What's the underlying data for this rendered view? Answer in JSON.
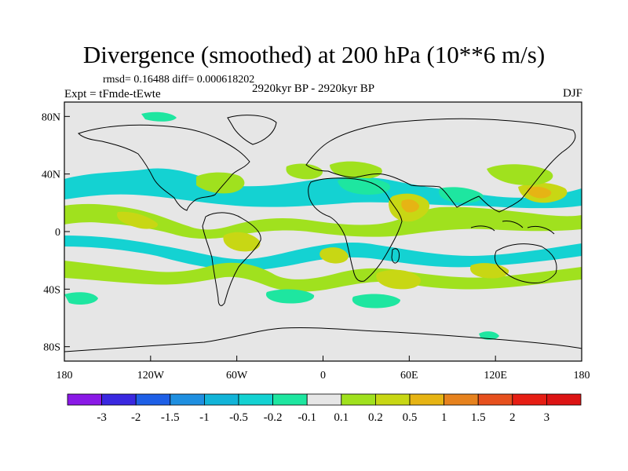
{
  "title": "Divergence (smoothed) at 200 hPa (10**6 m/s)",
  "stats": "rmsd= 0.16488 diff= 0.000618202",
  "experiment": "Expt = tFmde-tEwte",
  "period": "2920kyr BP - 2920kyr BP",
  "season": "DJF",
  "map": {
    "lat_ticks": [
      {
        "label": "80N",
        "lat": 80
      },
      {
        "label": "40N",
        "lat": 40
      },
      {
        "label": "0",
        "lat": 0
      },
      {
        "label": "40S",
        "lat": -40
      },
      {
        "label": "80S",
        "lat": -80
      }
    ],
    "lon_ticks": [
      {
        "label": "180",
        "lon": -180
      },
      {
        "label": "120W",
        "lon": -120
      },
      {
        "label": "60W",
        "lon": -60
      },
      {
        "label": "0",
        "lon": 0
      },
      {
        "label": "60E",
        "lon": 60
      },
      {
        "label": "120E",
        "lon": 120
      },
      {
        "label": "180",
        "lon": 180
      }
    ],
    "background_color": "#e6e6e6"
  },
  "colorbar": {
    "labels": [
      "-3",
      "-2",
      "-1.5",
      "-1",
      "-0.5",
      "-0.2",
      "-0.1",
      "0.1",
      "0.2",
      "0.5",
      "1",
      "1.5",
      "2",
      "3"
    ],
    "colors": [
      "#8a19e6",
      "#3a28e0",
      "#1e5fe6",
      "#1f8fe0",
      "#12b4d8",
      "#14d2d2",
      "#1ee6a0",
      "#e6e6e6",
      "#a0e11e",
      "#c8d714",
      "#e6b414",
      "#e6821e",
      "#e6501e",
      "#e61e14",
      "#dc1414"
    ]
  }
}
